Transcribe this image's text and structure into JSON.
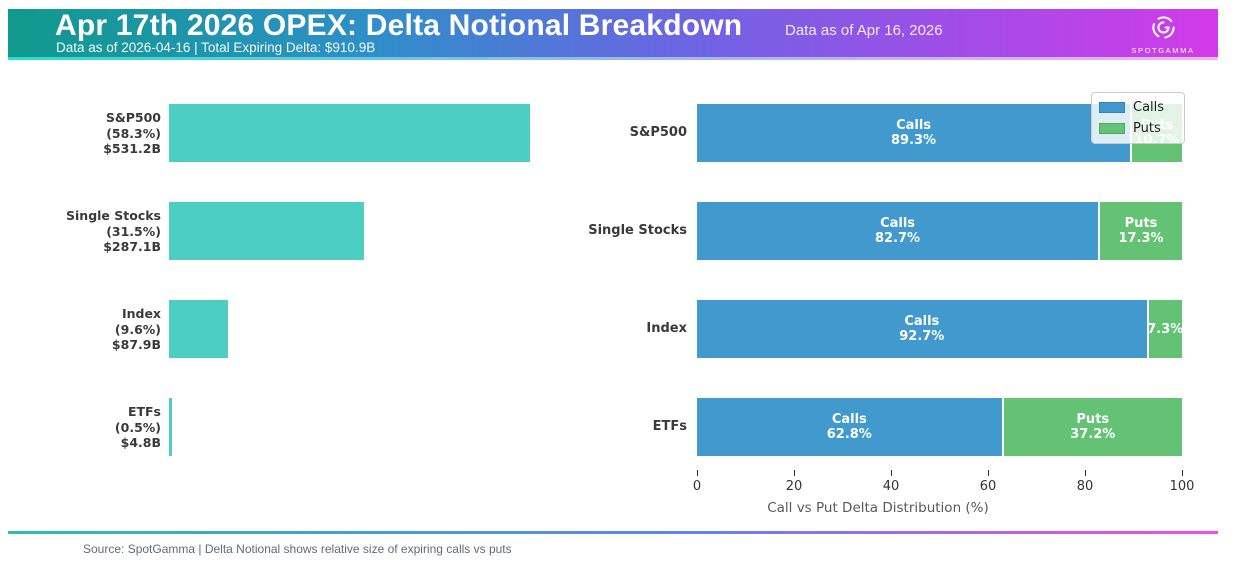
{
  "header": {
    "title": "Apr 17th 2026 OPEX: Delta Notional Breakdown",
    "subtitle": "Data as of 2026-04-16 | Total Expiring Delta: $910.9B",
    "watermark": "Data as of Apr 16, 2026",
    "logo_text": "SPOTGAMMA",
    "gradient": [
      "#0F9A8C",
      "#2E8FC9",
      "#6A66E2",
      "#A04DE8",
      "#D23BE8"
    ],
    "accent_gradient": [
      "#2BDECB",
      "#9FB7F5",
      "#F3B3EF"
    ]
  },
  "chart_data": [
    {
      "type": "bar",
      "orientation": "horizontal",
      "bar_color": "#4CCEC3",
      "xlim": [
        0,
        58.3
      ],
      "grid": false,
      "categories": [
        "S&P500",
        "Single Stocks",
        "Index",
        "ETFs"
      ],
      "values_pct": [
        58.3,
        31.5,
        9.6,
        0.5
      ],
      "values_usd": [
        "$531.2B",
        "$287.1B",
        "$87.9B",
        "$4.8B"
      ],
      "rows": [
        {
          "label_lines": [
            "S&P500",
            "(58.3%)",
            "$531.2B"
          ],
          "pct": 58.3
        },
        {
          "label_lines": [
            "Single Stocks",
            "(31.5%)",
            "$287.1B"
          ],
          "pct": 31.5
        },
        {
          "label_lines": [
            "Index",
            "(9.6%)",
            "$87.9B"
          ],
          "pct": 9.6
        },
        {
          "label_lines": [
            "ETFs",
            "(0.5%)",
            "$4.8B"
          ],
          "pct": 0.5
        }
      ]
    },
    {
      "type": "bar",
      "orientation": "horizontal",
      "stacked": true,
      "xlabel": "Call vs Put Delta Distribution (%)",
      "xlim": [
        0,
        100
      ],
      "xticks": [
        "0",
        "20",
        "40",
        "60",
        "80",
        "100"
      ],
      "legend_position": "upper right",
      "series": [
        {
          "name": "Calls",
          "color": "#4199CE",
          "values": [
            89.3,
            82.7,
            92.7,
            62.8
          ]
        },
        {
          "name": "Puts",
          "color": "#63C274",
          "values": [
            10.7,
            17.3,
            7.3,
            37.2
          ]
        }
      ],
      "categories": [
        "S&P500",
        "Single Stocks",
        "Index",
        "ETFs"
      ],
      "rows": [
        {
          "category": "S&P500",
          "calls": {
            "pct": 89.3,
            "label_lines": [
              "Calls",
              "89.3%"
            ]
          },
          "puts": {
            "pct": 10.7,
            "label_lines": [
              "Puts",
              "10.7%"
            ]
          }
        },
        {
          "category": "Single Stocks",
          "calls": {
            "pct": 82.7,
            "label_lines": [
              "Calls",
              "82.7%"
            ]
          },
          "puts": {
            "pct": 17.3,
            "label_lines": [
              "Puts",
              "17.3%"
            ]
          }
        },
        {
          "category": "Index",
          "calls": {
            "pct": 92.7,
            "label_lines": [
              "Calls",
              "92.7%"
            ]
          },
          "puts": {
            "pct": 7.3,
            "label_lines": [
              "7.3%"
            ]
          }
        },
        {
          "category": "ETFs",
          "calls": {
            "pct": 62.8,
            "label_lines": [
              "Calls",
              "62.8%"
            ]
          },
          "puts": {
            "pct": 37.2,
            "label_lines": [
              "Puts",
              "37.2%"
            ]
          }
        }
      ]
    }
  ],
  "footer": {
    "source": "Source: SpotGamma | Delta Notional shows relative size of expiring calls vs puts",
    "rule_gradient": [
      "#2FBCAE",
      "#5C86EF",
      "#F54BE0"
    ]
  }
}
